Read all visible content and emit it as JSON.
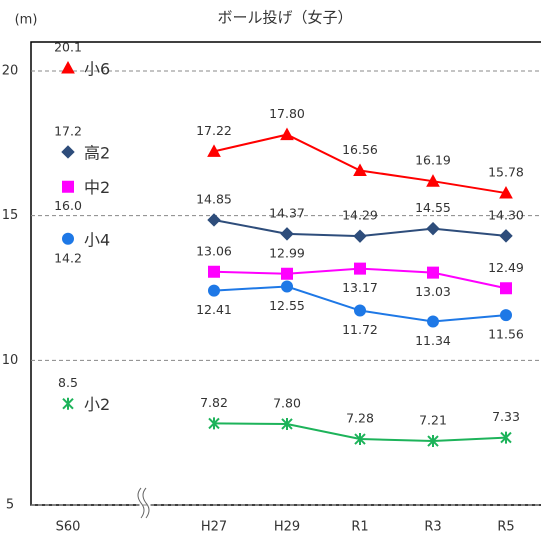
{
  "chart_data": {
    "type": "line",
    "title": "ボール投げ（女子）",
    "y_label": "(m)",
    "categories": [
      "S60",
      null,
      "H27",
      "H29",
      "R1",
      "R3",
      "R5"
    ],
    "ylim": [
      5,
      21
    ],
    "yticks": [
      5,
      10,
      15,
      20
    ],
    "grid": true,
    "series": [
      {
        "name": "小6",
        "color": "#ff0000",
        "marker": "triangle",
        "values": [
          20.1,
          null,
          17.22,
          17.8,
          16.56,
          16.19,
          15.78
        ],
        "value_labels": [
          "20.1",
          null,
          "17.22",
          "17.80",
          "16.56",
          "16.19",
          "15.78"
        ]
      },
      {
        "name": "高2",
        "color": "#2e4d7b",
        "marker": "diamond",
        "values": [
          17.2,
          null,
          14.85,
          14.37,
          14.29,
          14.55,
          14.3
        ],
        "value_labels": [
          "17.2",
          null,
          "14.85",
          "14.37",
          "14.29",
          "14.55",
          "14.30"
        ]
      },
      {
        "name": "中2",
        "color": "#ff00ff",
        "marker": "square",
        "values": [
          16.0,
          null,
          13.06,
          12.99,
          13.17,
          13.03,
          12.49
        ],
        "value_labels": [
          "16.0",
          null,
          "13.06",
          "12.99",
          "13.17",
          "13.03",
          "12.49"
        ]
      },
      {
        "name": "小4",
        "color": "#1e78e6",
        "marker": "circle",
        "values": [
          14.2,
          null,
          12.41,
          12.55,
          11.72,
          11.34,
          11.56
        ],
        "value_labels": [
          "14.2",
          null,
          "12.41",
          "12.55",
          "11.72",
          "11.34",
          "11.56"
        ]
      },
      {
        "name": "小2",
        "color": "#1db35a",
        "marker": "asterisk",
        "values": [
          8.5,
          null,
          7.82,
          7.8,
          7.28,
          7.21,
          7.33
        ],
        "value_labels": [
          "8.5",
          null,
          "7.82",
          "7.80",
          "7.28",
          "7.21",
          "7.33"
        ]
      }
    ]
  }
}
